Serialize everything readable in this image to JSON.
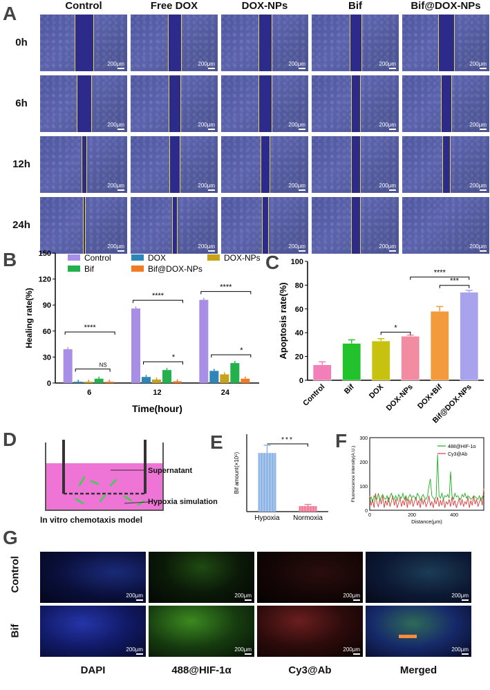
{
  "panel_A": {
    "letter": "A",
    "columns": [
      "Control",
      "Free DOX",
      "DOX-NPs",
      "Bif",
      "Bif@DOX-NPs"
    ],
    "rows": [
      "0h",
      "6h",
      "12h",
      "24h"
    ],
    "scale_label": "200μm",
    "gap_widths": [
      [
        0.2,
        0.14,
        0.15,
        0.13,
        0.17
      ],
      [
        0.16,
        0.12,
        0.14,
        0.1,
        0.11
      ],
      [
        0.04,
        0.11,
        0.1,
        0.09,
        0.08
      ],
      [
        0.02,
        0.05,
        0.07,
        0.1,
        0.0
      ]
    ]
  },
  "panel_B": {
    "letter": "B",
    "chart_data": {
      "type": "bar",
      "ylabel": "Healing rate(%)",
      "xlabel": "Time(hour)",
      "ylim": [
        0,
        150
      ],
      "yticks": [
        0,
        30,
        60,
        90,
        120,
        150
      ],
      "categories": [
        "6",
        "12",
        "24"
      ],
      "series": [
        {
          "name": "Control",
          "color": "#a98ee6",
          "values": [
            39,
            86,
            96
          ]
        },
        {
          "name": "DOX",
          "color": "#2e86b8",
          "values": [
            1.5,
            7,
            14
          ]
        },
        {
          "name": "DOX-NPs",
          "color": "#c8a21a",
          "values": [
            1.5,
            4,
            10
          ]
        },
        {
          "name": "Bif",
          "color": "#22b14c",
          "values": [
            5,
            15,
            23
          ]
        },
        {
          "name": "Bif@DOX-NPs",
          "color": "#f07b24",
          "values": [
            1.5,
            2,
            5
          ]
        }
      ],
      "significance": [
        {
          "label": "****"
        },
        {
          "label": "NS"
        },
        {
          "label": "****"
        },
        {
          "label": "*"
        },
        {
          "label": "****"
        },
        {
          "label": "*"
        }
      ],
      "legend_position": "top"
    }
  },
  "panel_C": {
    "letter": "C",
    "chart_data": {
      "type": "bar",
      "ylabel": "Apoptosis rate(%)",
      "ylim": [
        0,
        100
      ],
      "yticks": [
        0,
        20,
        40,
        60,
        80,
        100
      ],
      "categories": [
        "Control",
        "Bif",
        "DOX",
        "DOX-NPs",
        "DOX+Bif",
        "Bif@DOX-NPs"
      ],
      "values": [
        13,
        31,
        33,
        37,
        58,
        74
      ],
      "errors": [
        2.5,
        3,
        2,
        1,
        4,
        1.5
      ],
      "colors": [
        "#f27fb8",
        "#22c22c",
        "#c6c20f",
        "#f28ca0",
        "#f29a3c",
        "#a9a3ee"
      ],
      "significance": [
        {
          "label": "*"
        },
        {
          "label": "***"
        },
        {
          "label": "****"
        }
      ]
    }
  },
  "panel_D": {
    "letter": "D",
    "supernatant": "Supernatant",
    "hypoxia": "Hypoxia simulation",
    "caption": "In vitro chemotaxis model"
  },
  "panel_E": {
    "letter": "E",
    "chart_data": {
      "type": "bar",
      "ylabel": "Bif amount(×10⁵)",
      "categories": [
        "Hypoxia",
        "Normoxia"
      ],
      "values": [
        53,
        5
      ],
      "errors": [
        7,
        1.5
      ],
      "colors": [
        "#8fb6e6",
        "#f27e9a"
      ],
      "ylim": [
        0,
        70
      ],
      "significance": "***"
    }
  },
  "panel_F": {
    "letter": "F",
    "chart_data": {
      "type": "line",
      "ylabel": "Fluorescence intensity(A.U.)",
      "xlabel": "Distance(μm)",
      "ylim": [
        0,
        300
      ],
      "yticks": [
        0,
        100,
        200,
        300
      ],
      "xlim": [
        0,
        540
      ],
      "xticks": [
        0,
        200,
        400
      ],
      "legend_position": "top-right",
      "series": [
        {
          "name": "488@HIF-1α",
          "color": "#1fae1f",
          "values": [
            40,
            55,
            35,
            60,
            50,
            45,
            70,
            40,
            55,
            65,
            50,
            45,
            60,
            35,
            55,
            70,
            50,
            45,
            60,
            40,
            65,
            55,
            50,
            70,
            45,
            60,
            40,
            55,
            65,
            50,
            60,
            55,
            45,
            70,
            60,
            40,
            55,
            65,
            50,
            45,
            60,
            100,
            130,
            60,
            50,
            45,
            55,
            230,
            60,
            50,
            70,
            45,
            60,
            55,
            65,
            50,
            160,
            60,
            45,
            70,
            55,
            60,
            50,
            45,
            65,
            55,
            70,
            50,
            60,
            55,
            45,
            50,
            60,
            55,
            50,
            45,
            60,
            40,
            55,
            65
          ]
        },
        {
          "name": "Cy3@Ab",
          "color": "#e03a3a",
          "values": [
            60,
            20,
            45,
            10,
            70,
            30,
            15,
            50,
            25,
            60,
            10,
            40,
            20,
            55,
            15,
            35,
            60,
            20,
            45,
            10,
            30,
            55,
            15,
            40,
            20,
            60,
            10,
            45,
            25,
            50,
            15,
            35,
            55,
            20,
            40,
            10,
            50,
            25,
            45,
            15,
            30,
            60,
            20,
            35,
            10,
            45,
            25,
            55,
            15,
            40,
            20,
            50,
            10,
            35,
            25,
            45,
            15,
            55,
            20,
            40,
            10,
            30,
            50,
            20,
            45,
            15,
            35,
            25,
            55,
            10,
            40,
            20,
            60,
            25,
            45,
            15,
            35,
            50,
            20,
            90
          ]
        }
      ]
    }
  },
  "panel_G": {
    "letter": "G",
    "rows": [
      "Control",
      "Bif"
    ],
    "columns": [
      "DAPI",
      "488@HIF-1α",
      "Cy3@Ab",
      "Merged"
    ],
    "scale_label": "200μm"
  }
}
